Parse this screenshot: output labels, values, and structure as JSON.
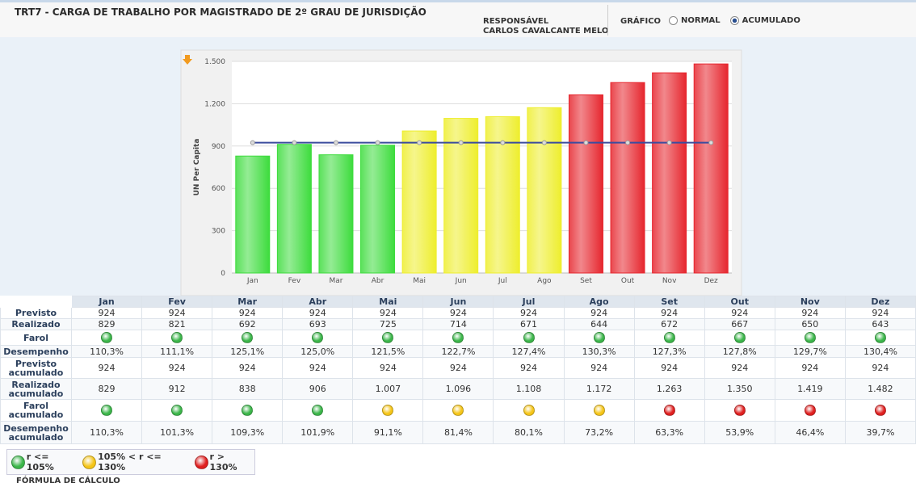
{
  "header": {
    "title": "TRT7 - CARGA DE TRABALHO POR MAGISTRADO DE 2º GRAU DE JURISDIÇÃO",
    "responsavel_label": "RESPONSÁVEL",
    "responsavel": "CARLOS CAVALCANTE MELO",
    "grafico_label": "GRÁFICO",
    "options": [
      "NORMAL",
      "ACUMULADO"
    ],
    "selected": 1
  },
  "chart_data": {
    "type": "bar",
    "y_label": "UN Per Capita",
    "categories": [
      "Jan",
      "Fev",
      "Mar",
      "Abr",
      "Mai",
      "Jun",
      "Jul",
      "Ago",
      "Set",
      "Out",
      "Nov",
      "Dez"
    ],
    "ylim": [
      0,
      1500
    ],
    "yticks": [
      0,
      300,
      600,
      900,
      {
        "value": 1200,
        "label": "1.200"
      },
      {
        "value": 1500,
        "label": "1.500"
      }
    ],
    "grid": true,
    "series": [
      {
        "type": "bar",
        "colors": [
          "#3ddc3d",
          "#3ddc3d",
          "#3ddc3d",
          "#3ddc3d",
          "#eeee2e",
          "#eeee2e",
          "#eeee2e",
          "#eeee2e",
          "#e6262e",
          "#e6262e",
          "#e6262e",
          "#e6262e"
        ],
        "values": [
          829,
          912,
          838,
          906,
          1007,
          1096,
          1108,
          1172,
          1263,
          1350,
          1419,
          1482
        ]
      },
      {
        "type": "line",
        "color": "#3b4c9e",
        "values": [
          924,
          924,
          924,
          924,
          924,
          924,
          924,
          924,
          924,
          924,
          924,
          924
        ]
      }
    ]
  },
  "table": {
    "columns": [
      "Jan",
      "Fev",
      "Mar",
      "Abr",
      "Mai",
      "Jun",
      "Jul",
      "Ago",
      "Set",
      "Out",
      "Nov",
      "Dez"
    ],
    "rows": [
      {
        "label": "Previsto",
        "cells": [
          "924",
          "924",
          "924",
          "924",
          "924",
          "924",
          "924",
          "924",
          "924",
          "924",
          "924",
          "924"
        ]
      },
      {
        "label": "Realizado",
        "cells": [
          "829",
          "821",
          "692",
          "693",
          "725",
          "714",
          "671",
          "644",
          "672",
          "667",
          "650",
          "643"
        ]
      },
      {
        "label": "Farol",
        "lights": [
          "#3cb64a",
          "#3cb64a",
          "#3cb64a",
          "#3cb64a",
          "#3cb64a",
          "#3cb64a",
          "#3cb64a",
          "#3cb64a",
          "#3cb64a",
          "#3cb64a",
          "#3cb64a",
          "#3cb64a"
        ]
      },
      {
        "label": "Desempenho",
        "cells": [
          "110,3%",
          "111,1%",
          "125,1%",
          "125,0%",
          "121,5%",
          "122,7%",
          "127,4%",
          "130,3%",
          "127,3%",
          "127,8%",
          "129,7%",
          "130,4%"
        ]
      },
      {
        "label": "Previsto acumulado",
        "cells": [
          "924",
          "924",
          "924",
          "924",
          "924",
          "924",
          "924",
          "924",
          "924",
          "924",
          "924",
          "924"
        ]
      },
      {
        "label": "Realizado acumulado",
        "cells": [
          "829",
          "912",
          "838",
          "906",
          "1.007",
          "1.096",
          "1.108",
          "1.172",
          "1.263",
          "1.350",
          "1.419",
          "1.482"
        ]
      },
      {
        "label": "Farol acumulado",
        "lights": [
          "#3cb64a",
          "#3cb64a",
          "#3cb64a",
          "#3cb64a",
          "#f5c518",
          "#f5c518",
          "#f5c518",
          "#f5c518",
          "#e02020",
          "#e02020",
          "#e02020",
          "#e02020"
        ]
      },
      {
        "label": "Desempenho acumulado",
        "cells": [
          "110,3%",
          "101,3%",
          "109,3%",
          "101,9%",
          "91,1%",
          "81,4%",
          "80,1%",
          "73,2%",
          "63,3%",
          "53,9%",
          "46,4%",
          "39,7%"
        ]
      }
    ]
  },
  "legend": [
    {
      "color": "#3cb64a",
      "label": "r <= 105%"
    },
    {
      "color": "#f5c518",
      "label": "105% < r <= 130%"
    },
    {
      "color": "#e02020",
      "label": "r > 130%"
    }
  ],
  "footer": "FÓRMULA DE CÁLCULO"
}
